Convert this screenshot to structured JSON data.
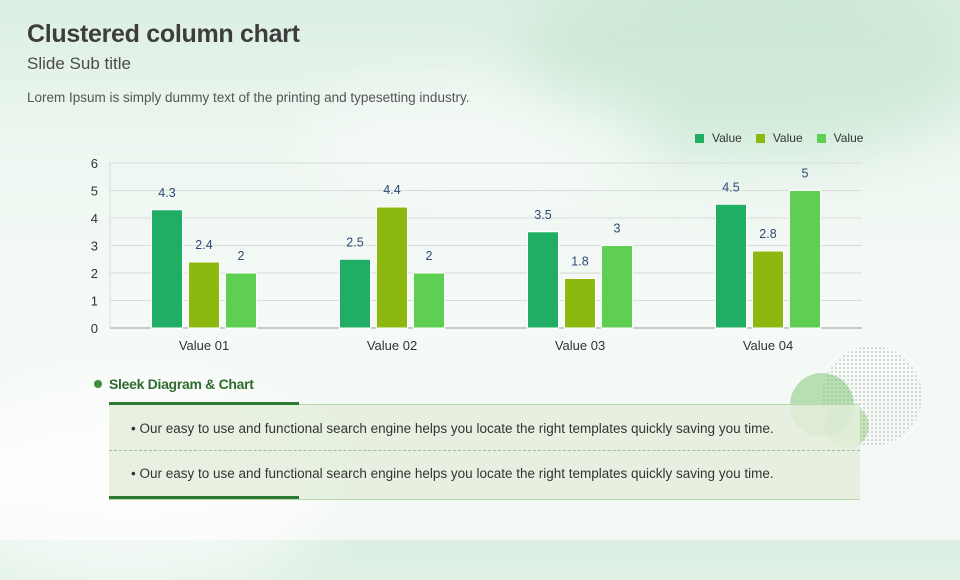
{
  "slide": {
    "title": "Clustered column chart",
    "subtitle": "Slide Sub title",
    "description": "Lorem Ipsum is simply dummy text of the printing and typesetting industry."
  },
  "chart_data": {
    "type": "bar",
    "categories": [
      "Value 01",
      "Value 02",
      "Value 03",
      "Value 04"
    ],
    "series": [
      {
        "name": "Value",
        "color": "#1fae63",
        "values": [
          4.3,
          2.5,
          3.5,
          4.5
        ]
      },
      {
        "name": "Value",
        "color": "#8db810",
        "values": [
          2.4,
          4.4,
          1.8,
          2.8
        ]
      },
      {
        "name": "Value",
        "color": "#5ecf52",
        "values": [
          2,
          2,
          3,
          5
        ]
      }
    ],
    "ylim": [
      0,
      6
    ],
    "yticks": [
      0,
      1,
      2,
      3,
      4,
      5,
      6
    ],
    "grid": true,
    "legend": "top-right",
    "data_label_color": "#2e4a7a"
  },
  "section": {
    "title": "Sleek Diagram & Chart",
    "bullets": [
      "•  Our easy to use and functional search engine helps you locate the right templates  quickly saving you time.",
      "•  Our easy to use and functional search engine helps you locate the right templates  quickly saving you time."
    ]
  }
}
